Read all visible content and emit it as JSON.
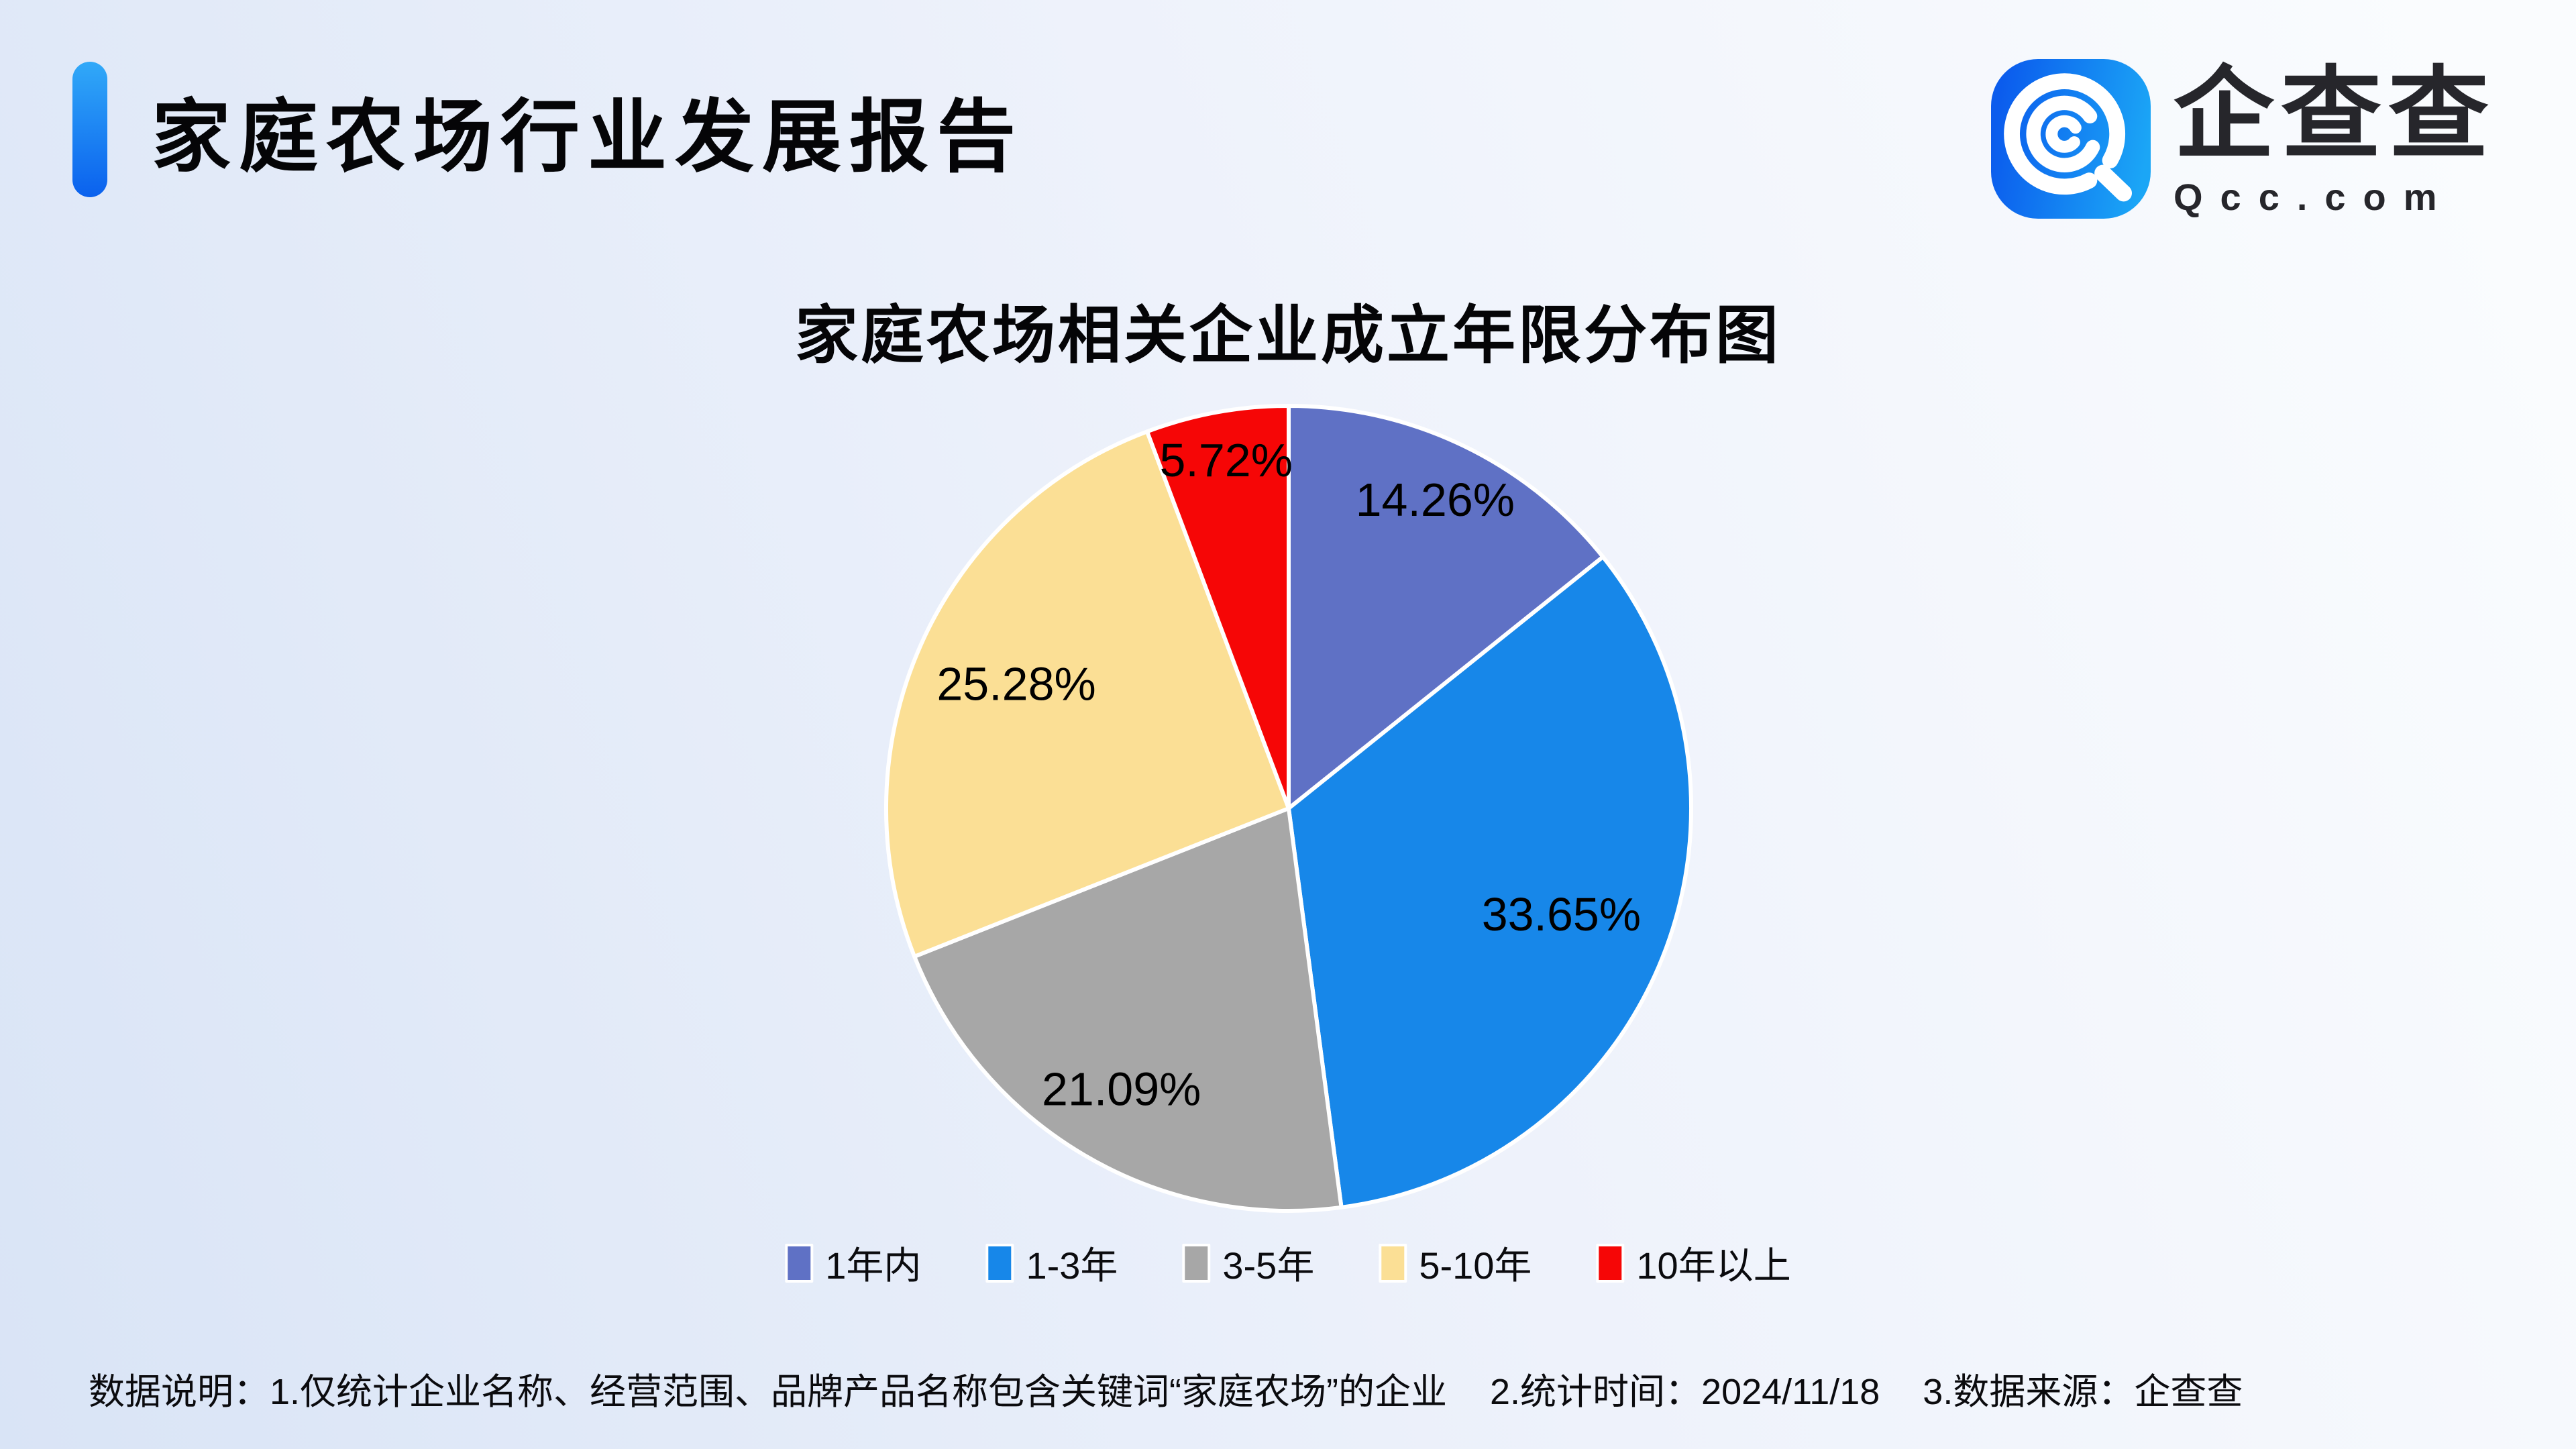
{
  "header": {
    "title": "家庭农场行业发展报告"
  },
  "logo": {
    "chars": [
      "企",
      "查",
      "查"
    ],
    "domain": "Qcc.com",
    "icon_gradient": [
      "#0b5ced",
      "#1ba6f6"
    ]
  },
  "chart_data": {
    "type": "pie",
    "title": "家庭农场相关企业成立年限分布图",
    "categories": [
      "1年内",
      "1-3年",
      "3-5年",
      "5-10年",
      "10年以上"
    ],
    "values": [
      14.26,
      33.65,
      21.09,
      25.28,
      5.72
    ],
    "labels": [
      "14.26%",
      "33.65%",
      "21.09%",
      "25.28%",
      "5.72%"
    ],
    "colors": [
      "#5F71C5",
      "#1787E9",
      "#A7A7A7",
      "#FBDF95",
      "#F60606"
    ],
    "start_angle_deg": 0,
    "direction": "clockwise",
    "slice_border_color": "#ffffff",
    "legend_position": "bottom",
    "label_radius_factors": [
      0.84,
      0.73,
      0.82,
      0.74,
      0.87
    ]
  },
  "footer": {
    "prefix": "数据说明：",
    "notes": [
      "1.仅统计企业名称、经营范围、品牌产品名称包含关键词“家庭农场”的企业",
      "2.统计时间：2024/11/18",
      "3.数据来源：企查查"
    ]
  }
}
